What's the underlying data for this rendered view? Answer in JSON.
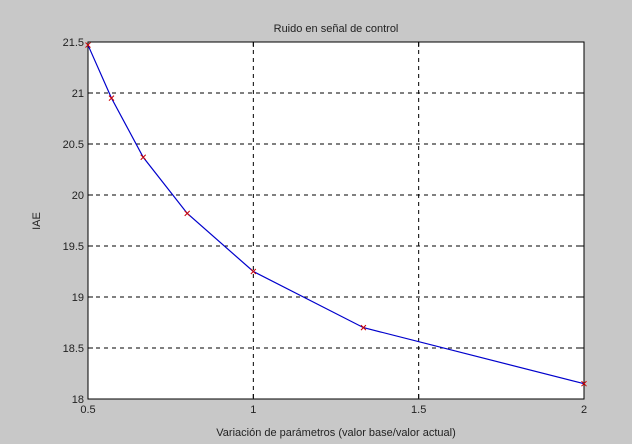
{
  "chart_data": {
    "type": "line",
    "title": "Ruido en señal de control",
    "xlabel": "Variación de parámetros (valor base/valor actual)",
    "ylabel": "IAE",
    "xlim": [
      0.5,
      2
    ],
    "ylim": [
      18,
      21.5
    ],
    "xticks": [
      "0.5",
      "1",
      "1.5",
      "2"
    ],
    "yticks": [
      "18",
      "18.5",
      "19",
      "19.5",
      "20",
      "20.5",
      "21",
      "21.5"
    ],
    "grid": true,
    "line_color": "#0000cc",
    "marker_color": "#cc0000",
    "series": [
      {
        "x": [
          0.5,
          0.571,
          0.667,
          0.8,
          1.0,
          1.333,
          2.0
        ],
        "y": [
          21.47,
          20.95,
          20.37,
          19.82,
          19.25,
          18.7,
          18.15
        ]
      }
    ]
  }
}
